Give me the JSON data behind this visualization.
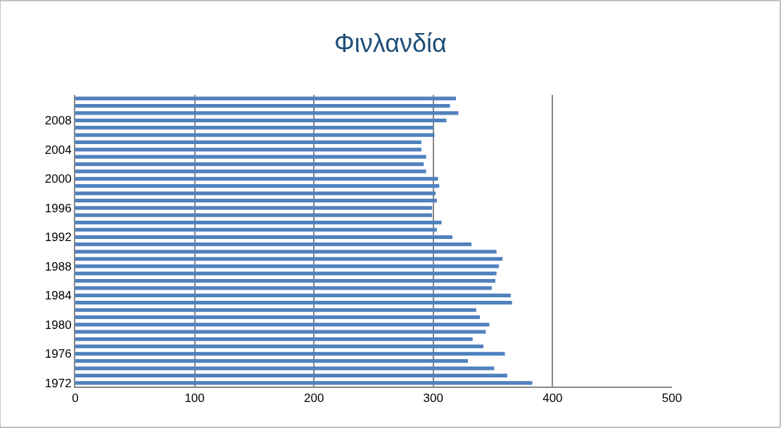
{
  "chart_data": {
    "type": "bar",
    "orientation": "horizontal",
    "title": "Φινλανδία",
    "categories": [
      null,
      null,
      null,
      "2008",
      null,
      null,
      null,
      "2004",
      null,
      null,
      null,
      "2000",
      null,
      null,
      null,
      "1996",
      null,
      null,
      null,
      "1992",
      null,
      null,
      null,
      "1988",
      null,
      null,
      null,
      "1984",
      null,
      null,
      null,
      "1980",
      null,
      null,
      null,
      "1976",
      null,
      null,
      null,
      "1972"
    ],
    "values": [
      319,
      314,
      321,
      311,
      300,
      301,
      290,
      290,
      294,
      292,
      294,
      304,
      305,
      302,
      303,
      299,
      299,
      307,
      303,
      316,
      332,
      353,
      358,
      355,
      353,
      352,
      349,
      365,
      366,
      336,
      339,
      347,
      344,
      333,
      342,
      360,
      329,
      351,
      362,
      383
    ],
    "color": "#4f81bd",
    "xlim": [
      0,
      500
    ],
    "xticks": [
      0,
      100,
      200,
      300,
      400,
      500
    ],
    "grid": "x",
    "legend": false
  }
}
